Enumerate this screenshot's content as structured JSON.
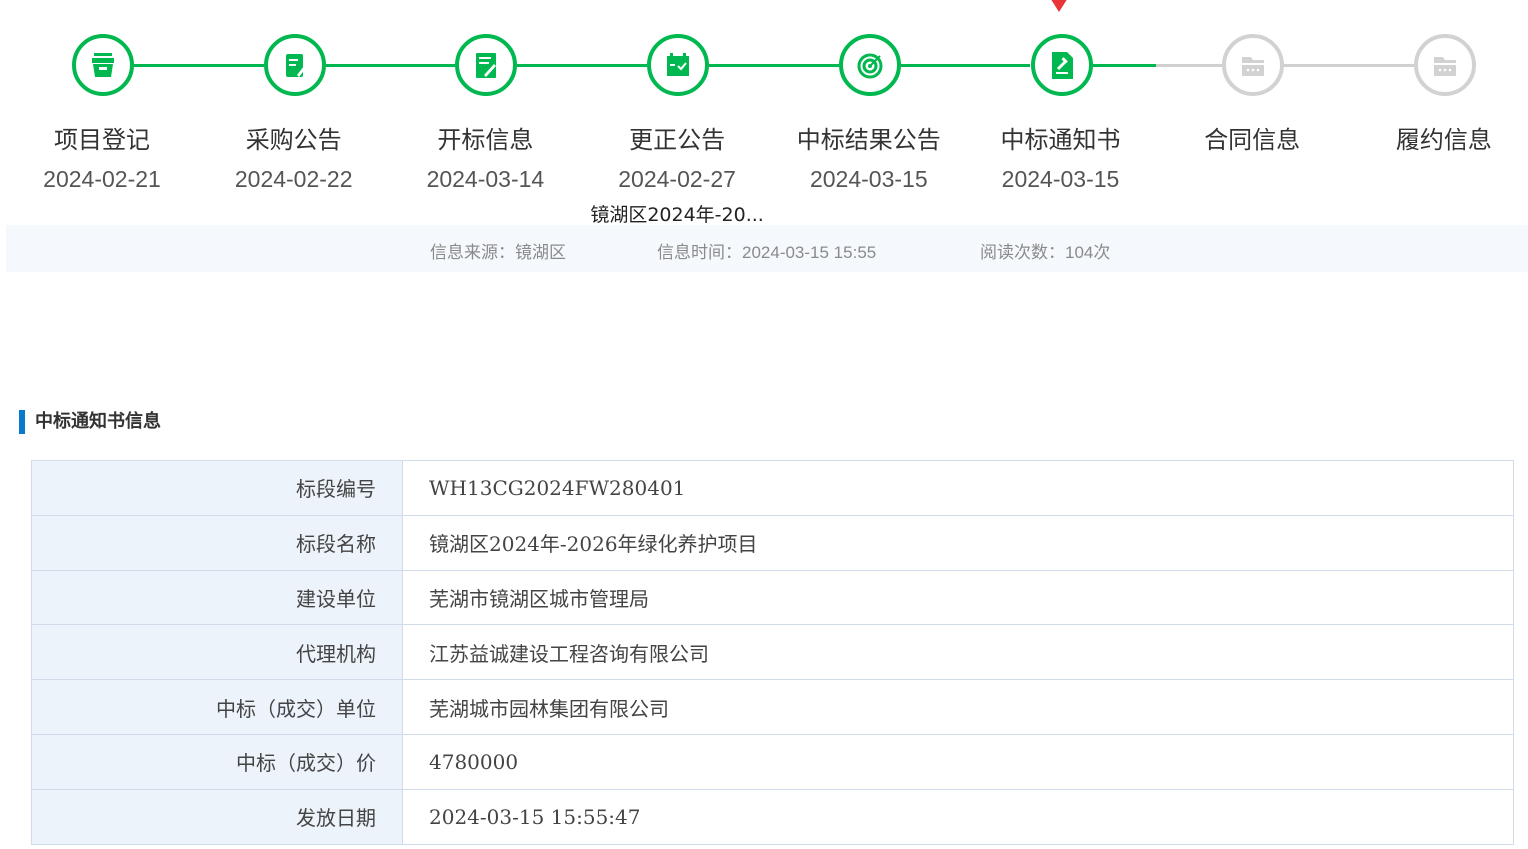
{
  "steps": [
    {
      "label": "项目登记",
      "date": "2024-02-21",
      "icon": "archive-box-icon",
      "done": true
    },
    {
      "label": "采购公告",
      "date": "2024-02-22",
      "icon": "clipboard-edit-icon",
      "done": true
    },
    {
      "label": "开标信息",
      "date": "2024-03-14",
      "icon": "document-edit-icon",
      "done": true
    },
    {
      "label": "更正公告",
      "date": "2024-02-27",
      "sub": "镜湖区2024年-20...",
      "icon": "calendar-check-icon",
      "done": true
    },
    {
      "label": "中标结果公告",
      "date": "2024-03-15",
      "icon": "target-icon",
      "done": true
    },
    {
      "label": "中标通知书",
      "date": "2024-03-15",
      "icon": "gavel-document-icon",
      "done": true,
      "current": true
    },
    {
      "label": "合同信息",
      "date": "",
      "icon": "folder-icon",
      "done": false
    },
    {
      "label": "履约信息",
      "date": "",
      "icon": "folder-icon",
      "done": false
    }
  ],
  "colors": {
    "done": "#00b84f",
    "pending": "#d2d2d2",
    "marker": "#e8353a",
    "accent": "#0a79c9"
  },
  "info": {
    "source": "信息来源：镜湖区",
    "time": "信息时间：2024-03-15 15:55",
    "views": "阅读次数：104次"
  },
  "section_title": "中标通知书信息",
  "rows": [
    {
      "k": "标段编号",
      "v": "WH13CG2024FW280401"
    },
    {
      "k": "标段名称",
      "v": "镜湖区2024年-2026年绿化养护项目"
    },
    {
      "k": "建设单位",
      "v": "芜湖市镜湖区城市管理局"
    },
    {
      "k": "代理机构",
      "v": "江苏益诚建设工程咨询有限公司"
    },
    {
      "k": "中标（成交）单位",
      "v": "芜湖城市园林集团有限公司"
    },
    {
      "k": "中标（成交）价",
      "v": "4780000"
    },
    {
      "k": "发放日期",
      "v": "2024-03-15 15:55:47"
    }
  ]
}
